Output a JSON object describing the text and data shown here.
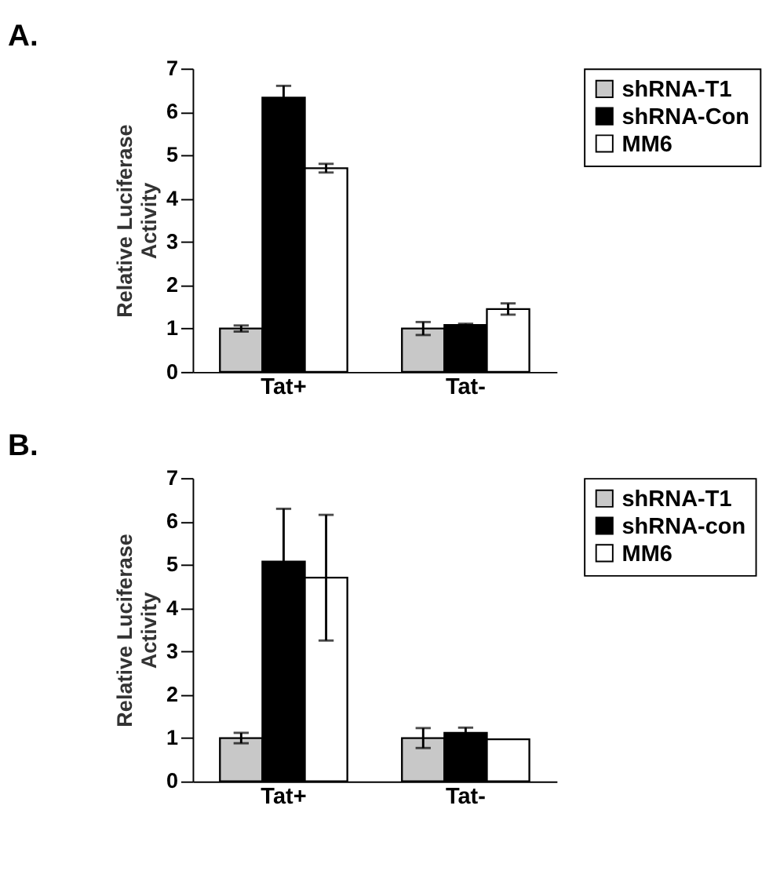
{
  "chart_data": [
    {
      "type": "bar",
      "title": "A.",
      "ylabel": "Relative Luciferase\nActivity",
      "categories": [
        "Tat+",
        "Tat-"
      ],
      "ylim": [
        0,
        7
      ],
      "yticks": [
        0,
        1,
        2,
        3,
        4,
        5,
        6,
        7
      ],
      "grid": false,
      "legend": "right",
      "series": [
        {
          "name": "shRNA-T1",
          "color": "#c8c8c8",
          "values": [
            1.0,
            1.0
          ],
          "errors": [
            0.07,
            0.15
          ]
        },
        {
          "name": "shRNA-Con",
          "color": "#000000",
          "values": [
            6.33,
            1.08
          ],
          "errors": [
            0.27,
            0.03
          ]
        },
        {
          "name": "MM6",
          "color": "#ffffff",
          "values": [
            4.7,
            1.45
          ],
          "errors": [
            0.1,
            0.13
          ]
        }
      ]
    },
    {
      "type": "bar",
      "title": "B.",
      "ylabel": "Relative Luciferase\nActivity",
      "categories": [
        "Tat+",
        "Tat-"
      ],
      "ylim": [
        0,
        7
      ],
      "yticks": [
        0,
        1,
        2,
        3,
        4,
        5,
        6,
        7
      ],
      "grid": false,
      "legend": "right",
      "series": [
        {
          "name": "shRNA-T1",
          "color": "#c8c8c8",
          "values": [
            1.0,
            1.0
          ],
          "errors": [
            0.12,
            0.23
          ]
        },
        {
          "name": "shRNA-con",
          "color": "#000000",
          "values": [
            5.07,
            1.12
          ],
          "errors": [
            1.22,
            0.12
          ]
        },
        {
          "name": "MM6",
          "color": "#ffffff",
          "values": [
            4.7,
            0.97
          ],
          "errors": [
            1.45,
            null
          ]
        }
      ]
    }
  ]
}
